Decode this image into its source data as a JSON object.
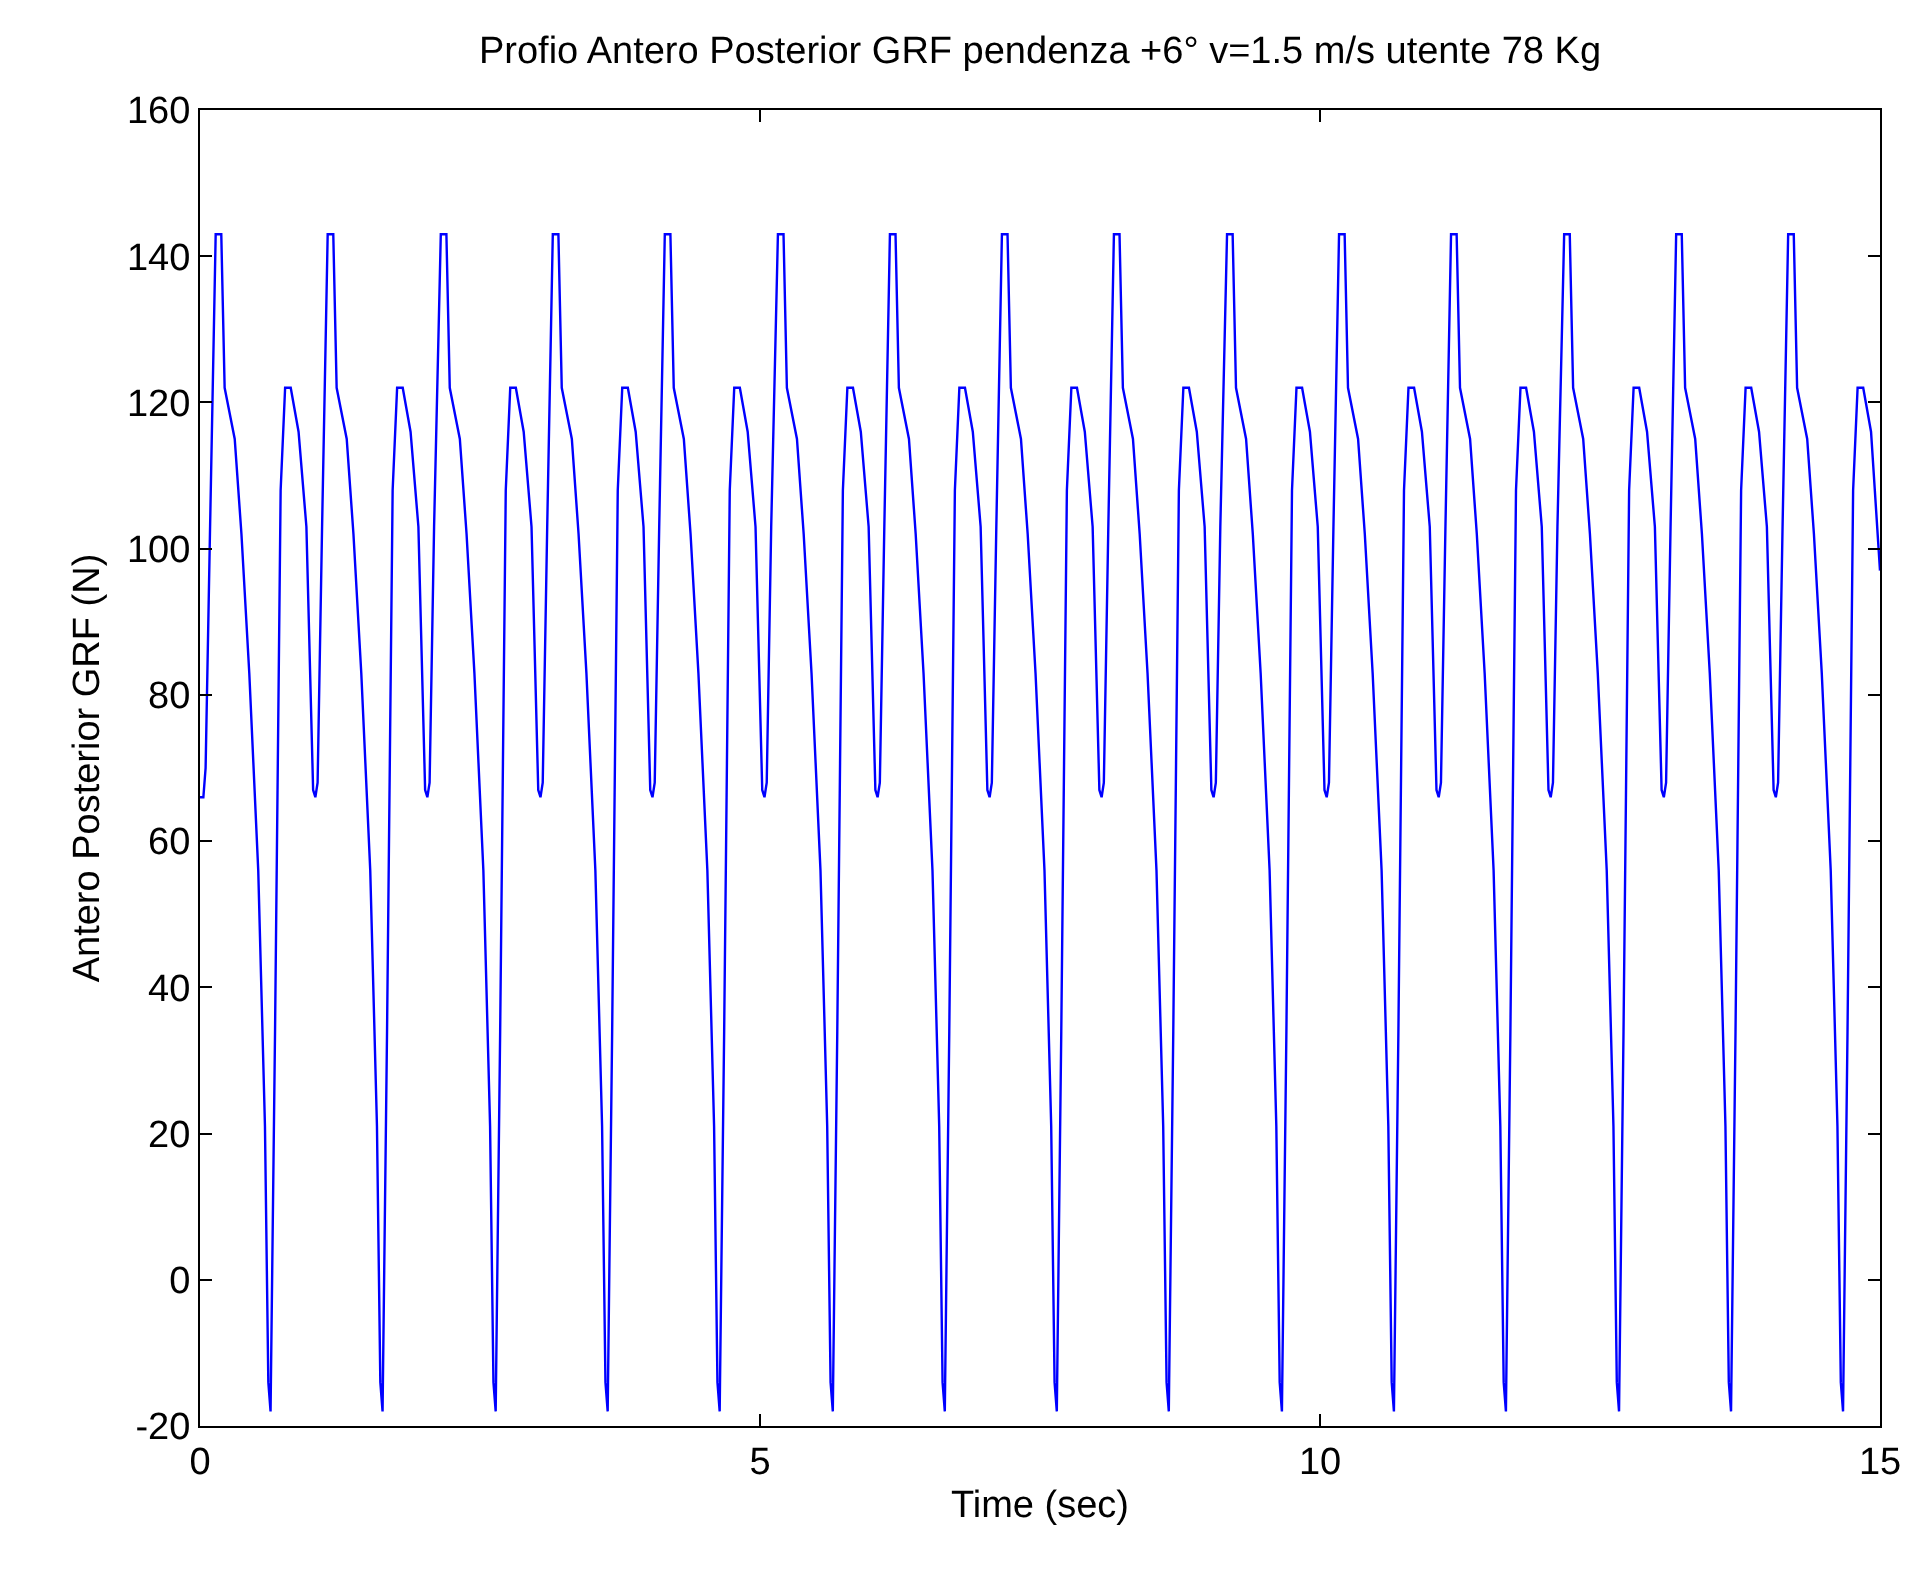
{
  "chart_data": {
    "type": "line",
    "title": "Profio Antero Posterior GRF pendenza +6° v=1.5 m/s utente 78 Kg",
    "xlabel": "Time (sec)",
    "ylabel": "Antero Posterior GRF (N)",
    "xlim": [
      0,
      15
    ],
    "xticks": [
      0,
      5,
      10,
      15
    ],
    "ylim": [
      -20,
      160
    ],
    "yticks": [
      -20,
      0,
      20,
      40,
      60,
      80,
      100,
      120,
      140,
      160
    ],
    "series": [
      {
        "color": "#0000ff",
        "x": [
          0,
          0.03,
          0.05,
          0.09,
          0.14,
          0.19,
          0.22,
          0.31,
          0.37,
          0.44,
          0.52,
          0.58,
          0.61,
          0.63,
          0.67,
          0.72,
          0.76,
          0.81,
          0.88,
          0.95,
          1.01,
          1.03,
          1.05,
          1.09,
          1.14,
          1.19,
          1.22,
          1.31,
          1.37,
          1.44,
          1.52,
          1.58,
          1.61,
          1.63,
          1.67,
          1.72,
          1.76,
          1.81,
          1.88,
          1.95,
          2.01,
          2.03,
          2.05,
          2.09,
          2.15,
          2.2,
          2.23,
          2.32,
          2.38,
          2.45,
          2.53,
          2.59,
          2.62,
          2.64,
          2.68,
          2.73,
          2.77,
          2.82,
          2.89,
          2.96,
          3.02,
          3.04,
          3.06,
          3.1,
          3.15,
          3.2,
          3.23,
          3.32,
          3.38,
          3.45,
          3.53,
          3.59,
          3.62,
          3.64,
          3.68,
          3.73,
          3.77,
          3.82,
          3.89,
          3.96,
          4.02,
          4.04,
          4.06,
          4.1,
          4.15,
          4.2,
          4.23,
          4.32,
          4.38,
          4.45,
          4.53,
          4.59,
          4.62,
          4.64,
          4.68,
          4.73,
          4.77,
          4.82,
          4.89,
          4.96,
          5.02,
          5.04,
          5.06,
          5.1,
          5.16,
          5.21,
          5.24,
          5.33,
          5.39,
          5.46,
          5.54,
          5.6,
          5.63,
          5.65,
          5.69,
          5.74,
          5.78,
          5.83,
          5.9,
          5.97,
          6.03,
          6.05,
          6.07,
          6.11,
          6.16,
          6.21,
          6.24,
          6.33,
          6.39,
          6.46,
          6.54,
          6.6,
          6.63,
          6.65,
          6.69,
          6.74,
          6.78,
          6.83,
          6.9,
          6.97,
          7.03,
          7.05,
          7.07,
          7.11,
          7.16,
          7.21,
          7.24,
          7.33,
          7.39,
          7.46,
          7.54,
          7.6,
          7.63,
          7.65,
          7.69,
          7.74,
          7.78,
          7.83,
          7.9,
          7.97,
          8.03,
          8.05,
          8.07,
          8.11,
          8.16,
          8.21,
          8.24,
          8.33,
          8.39,
          8.46,
          8.54,
          8.6,
          8.63,
          8.65,
          8.69,
          8.74,
          8.78,
          8.83,
          8.9,
          8.97,
          9.03,
          9.05,
          9.07,
          9.11,
          9.17,
          9.22,
          9.25,
          9.34,
          9.4,
          9.47,
          9.55,
          9.61,
          9.64,
          9.66,
          9.7,
          9.75,
          9.79,
          9.84,
          9.91,
          9.98,
          10.04,
          10.06,
          10.08,
          10.12,
          10.17,
          10.22,
          10.25,
          10.34,
          10.4,
          10.47,
          10.55,
          10.61,
          10.64,
          10.66,
          10.7,
          10.75,
          10.79,
          10.84,
          10.91,
          10.98,
          11.04,
          11.06,
          11.08,
          11.12,
          11.17,
          11.22,
          11.25,
          11.34,
          11.4,
          11.47,
          11.55,
          11.61,
          11.64,
          11.66,
          11.7,
          11.75,
          11.79,
          11.84,
          11.91,
          11.98,
          12.04,
          12.06,
          12.08,
          12.12,
          12.18,
          12.23,
          12.26,
          12.35,
          12.41,
          12.48,
          12.56,
          12.62,
          12.65,
          12.67,
          12.71,
          12.76,
          12.8,
          12.85,
          12.92,
          12.99,
          13.05,
          13.07,
          13.09,
          13.13,
          13.18,
          13.23,
          13.26,
          13.35,
          13.41,
          13.48,
          13.56,
          13.62,
          13.65,
          13.67,
          13.71,
          13.76,
          13.8,
          13.85,
          13.92,
          13.99,
          14.05,
          14.07,
          14.09,
          14.13,
          14.18,
          14.23,
          14.26,
          14.35,
          14.41,
          14.48,
          14.56,
          14.62,
          14.65,
          14.67,
          14.71,
          14.76,
          14.8,
          14.85,
          14.92,
          15.0
        ],
        "values": [
          66,
          66,
          70,
          103,
          143,
          143,
          122,
          115,
          102,
          83,
          56,
          21,
          -14,
          -18,
          34,
          108,
          122,
          122,
          116,
          103,
          67,
          66,
          68,
          103,
          143,
          143,
          122,
          115,
          102,
          83,
          56,
          21,
          -14,
          -18,
          34,
          108,
          122,
          122,
          116,
          103,
          67,
          66,
          68,
          103,
          143,
          143,
          122,
          115,
          102,
          83,
          56,
          21,
          -14,
          -18,
          34,
          108,
          122,
          122,
          116,
          103,
          67,
          66,
          68,
          103,
          143,
          143,
          122,
          115,
          102,
          83,
          56,
          21,
          -14,
          -18,
          34,
          108,
          122,
          122,
          116,
          103,
          67,
          66,
          68,
          103,
          143,
          143,
          122,
          115,
          102,
          83,
          56,
          21,
          -14,
          -18,
          34,
          108,
          122,
          122,
          116,
          103,
          67,
          66,
          68,
          103,
          143,
          143,
          122,
          115,
          102,
          83,
          56,
          21,
          -14,
          -18,
          34,
          108,
          122,
          122,
          116,
          103,
          67,
          66,
          68,
          103,
          143,
          143,
          122,
          115,
          102,
          83,
          56,
          21,
          -14,
          -18,
          34,
          108,
          122,
          122,
          116,
          103,
          67,
          66,
          68,
          103,
          143,
          143,
          122,
          115,
          102,
          83,
          56,
          21,
          -14,
          -18,
          34,
          108,
          122,
          122,
          116,
          103,
          67,
          66,
          68,
          103,
          143,
          143,
          122,
          115,
          102,
          83,
          56,
          21,
          -14,
          -18,
          34,
          108,
          122,
          122,
          116,
          103,
          67,
          66,
          68,
          103,
          143,
          143,
          122,
          115,
          102,
          83,
          56,
          21,
          -14,
          -18,
          34,
          108,
          122,
          122,
          116,
          103,
          67,
          66,
          68,
          103,
          143,
          143,
          122,
          115,
          102,
          83,
          56,
          21,
          -14,
          -18,
          34,
          108,
          122,
          122,
          116,
          103,
          67,
          66,
          68,
          103,
          143,
          143,
          122,
          115,
          102,
          83,
          56,
          21,
          -14,
          -18,
          34,
          108,
          122,
          122,
          116,
          103,
          67,
          66,
          68,
          103,
          143,
          143,
          122,
          115,
          102,
          83,
          56,
          21,
          -14,
          -18,
          34,
          108,
          122,
          122,
          116,
          103,
          67,
          66,
          68,
          103,
          143,
          143,
          122,
          115,
          102,
          83,
          56,
          21,
          -14,
          -18,
          34,
          108,
          122,
          122,
          116,
          103,
          67,
          66,
          68,
          103,
          143,
          143,
          122,
          115,
          102,
          83,
          56,
          21,
          -14,
          -18,
          34,
          108,
          122,
          122,
          116,
          97
        ]
      }
    ]
  }
}
